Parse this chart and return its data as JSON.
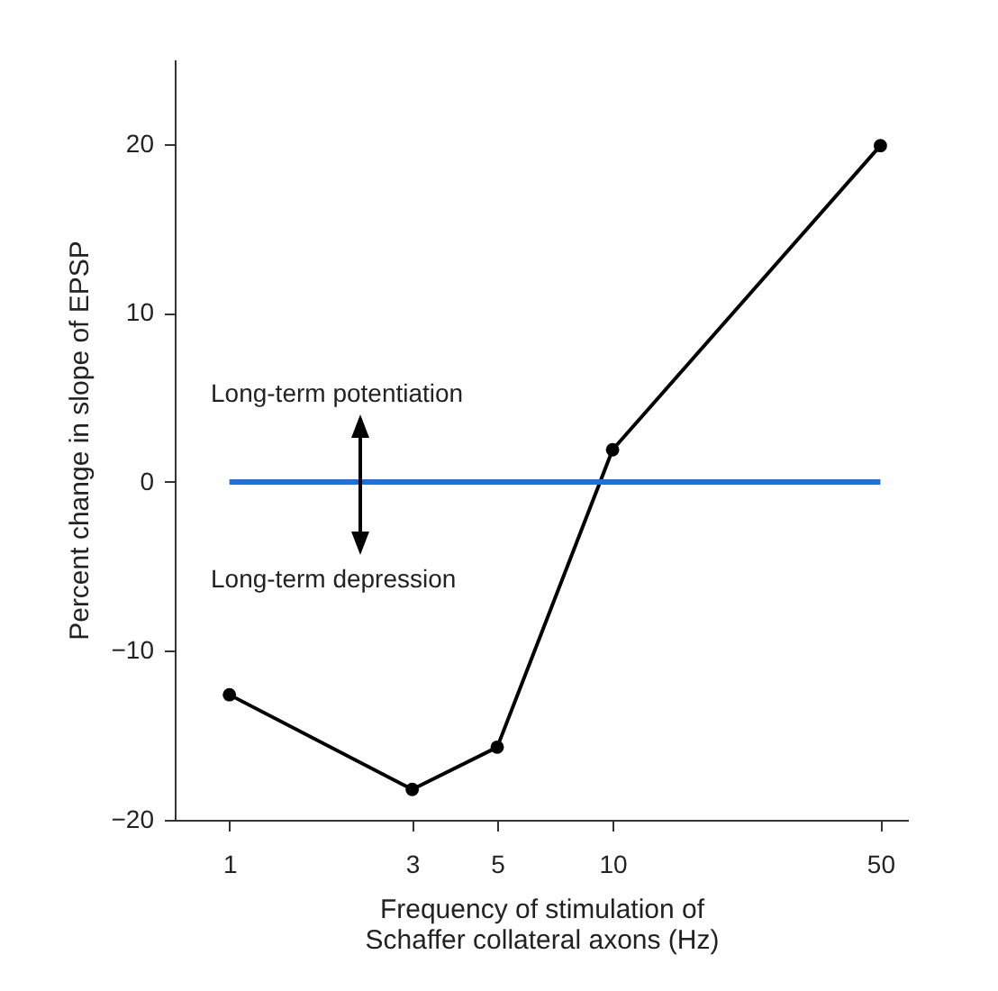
{
  "chart_data": {
    "type": "line",
    "xlabel": "Frequency of stimulation of\nSchaffer collateral axons (Hz)",
    "ylabel": "Percent change in slope of EPSP",
    "log": "x",
    "xlim": [
      0.72,
      59
    ],
    "xticks": [
      1,
      3,
      5,
      10,
      50
    ],
    "ylim": [
      -20,
      25
    ],
    "yticks": [
      -20,
      -10,
      0,
      10,
      20
    ],
    "grid": false,
    "line_style": "solid",
    "series": [
      {
        "x": [
          1,
          3,
          5,
          10,
          50
        ],
        "values": [
          -12.6,
          -18.2,
          -15.7,
          1.9,
          19.9
        ],
        "color": "#000000",
        "marker": "circle"
      },
      {
        "x": [
          1,
          50
        ],
        "values": [
          0,
          0
        ],
        "color": "#1e6fe0",
        "marker": "none"
      }
    ],
    "annotations": [
      "Long-term potentiation",
      "Long-term depression"
    ]
  }
}
